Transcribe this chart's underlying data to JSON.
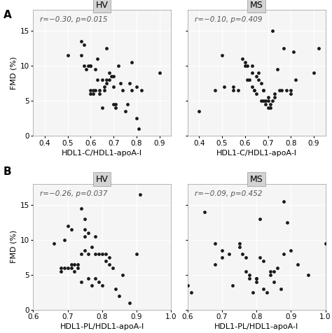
{
  "panel_A_HV": {
    "label": "HV",
    "annotation": "r=−0.30, p=0.015",
    "x": [
      0.5,
      0.56,
      0.57,
      0.56,
      0.57,
      0.58,
      0.59,
      0.6,
      0.6,
      0.6,
      0.6,
      0.61,
      0.61,
      0.62,
      0.62,
      0.63,
      0.63,
      0.64,
      0.64,
      0.65,
      0.65,
      0.66,
      0.66,
      0.67,
      0.67,
      0.67,
      0.68,
      0.68,
      0.69,
      0.7,
      0.7,
      0.7,
      0.71,
      0.71,
      0.72,
      0.73,
      0.74,
      0.75,
      0.76,
      0.77,
      0.78,
      0.78,
      0.8,
      0.8,
      0.81,
      0.82,
      0.9
    ],
    "y": [
      11.5,
      13.5,
      13.0,
      11.5,
      10.0,
      9.5,
      10.0,
      10.0,
      10.0,
      6.0,
      6.5,
      6.0,
      6.5,
      9.5,
      6.5,
      11.0,
      8.0,
      6.0,
      6.5,
      8.0,
      4.0,
      6.5,
      7.0,
      12.5,
      8.0,
      7.5,
      9.0,
      8.0,
      8.5,
      8.5,
      7.0,
      4.5,
      4.5,
      4.0,
      10.0,
      7.5,
      6.5,
      3.5,
      4.5,
      7.5,
      10.5,
      6.5,
      2.5,
      7.0,
      1.0,
      6.5,
      9.0
    ],
    "xlim": [
      0.35,
      0.95
    ],
    "ylim": [
      0,
      18
    ],
    "xticks": [
      0.4,
      0.5,
      0.6,
      0.7,
      0.8,
      0.9
    ],
    "yticks": [
      0,
      5,
      10,
      15
    ]
  },
  "panel_A_MS": {
    "label": "MS",
    "annotation": "r=−0.10, p=0.409",
    "x": [
      0.4,
      0.47,
      0.5,
      0.51,
      0.55,
      0.55,
      0.57,
      0.59,
      0.6,
      0.6,
      0.61,
      0.61,
      0.62,
      0.63,
      0.63,
      0.63,
      0.64,
      0.64,
      0.65,
      0.65,
      0.66,
      0.66,
      0.67,
      0.67,
      0.68,
      0.68,
      0.68,
      0.69,
      0.69,
      0.7,
      0.7,
      0.7,
      0.71,
      0.71,
      0.72,
      0.72,
      0.73,
      0.73,
      0.74,
      0.75,
      0.76,
      0.77,
      0.78,
      0.8,
      0.8,
      0.81,
      0.82,
      0.9,
      0.92
    ],
    "y": [
      3.5,
      6.5,
      11.5,
      7.0,
      6.5,
      7.0,
      6.5,
      11.0,
      10.5,
      10.0,
      10.0,
      8.0,
      8.0,
      10.0,
      9.0,
      7.0,
      6.5,
      6.5,
      8.5,
      6.0,
      9.0,
      8.0,
      7.5,
      5.0,
      5.0,
      6.5,
      6.5,
      5.0,
      4.5,
      5.5,
      5.0,
      4.0,
      4.5,
      4.0,
      15.0,
      5.0,
      5.5,
      6.0,
      9.5,
      6.5,
      6.5,
      12.5,
      6.5,
      6.5,
      6.0,
      12.0,
      8.0,
      9.0,
      12.5
    ],
    "xlim": [
      0.35,
      0.95
    ],
    "ylim": [
      0,
      18
    ],
    "xticks": [
      0.4,
      0.5,
      0.6,
      0.7,
      0.8,
      0.9
    ],
    "yticks": [
      0,
      5,
      10,
      15
    ]
  },
  "panel_B_HV": {
    "label": "HV",
    "annotation": "r=−0.26, p=0.037",
    "x": [
      0.66,
      0.68,
      0.68,
      0.69,
      0.69,
      0.7,
      0.7,
      0.71,
      0.71,
      0.71,
      0.72,
      0.72,
      0.73,
      0.73,
      0.74,
      0.74,
      0.74,
      0.75,
      0.75,
      0.75,
      0.75,
      0.76,
      0.76,
      0.76,
      0.77,
      0.77,
      0.78,
      0.78,
      0.78,
      0.79,
      0.79,
      0.8,
      0.8,
      0.81,
      0.81,
      0.82,
      0.82,
      0.83,
      0.84,
      0.85,
      0.86,
      0.88,
      0.9,
      0.91
    ],
    "y": [
      9.5,
      5.5,
      6.0,
      10.0,
      6.0,
      12.0,
      6.0,
      11.5,
      6.5,
      6.0,
      6.5,
      5.5,
      6.5,
      6.0,
      14.5,
      8.0,
      4.0,
      13.0,
      11.5,
      10.5,
      8.5,
      11.0,
      8.0,
      4.5,
      9.0,
      3.5,
      10.5,
      8.0,
      4.5,
      8.0,
      4.0,
      8.0,
      3.5,
      8.0,
      7.0,
      6.5,
      7.5,
      6.0,
      3.0,
      2.0,
      5.0,
      1.0,
      8.0,
      16.5
    ],
    "xlim": [
      0.6,
      1.0
    ],
    "ylim": [
      0,
      18
    ],
    "xticks": [
      0.6,
      0.7,
      0.8,
      0.9,
      1.0
    ],
    "yticks": [
      0,
      5,
      10,
      15
    ]
  },
  "panel_B_MS": {
    "label": "MS",
    "annotation": "r=−0.09, p=0.452",
    "x": [
      0.6,
      0.61,
      0.65,
      0.68,
      0.68,
      0.7,
      0.7,
      0.72,
      0.73,
      0.75,
      0.75,
      0.76,
      0.77,
      0.77,
      0.78,
      0.78,
      0.79,
      0.8,
      0.8,
      0.8,
      0.81,
      0.81,
      0.82,
      0.82,
      0.83,
      0.84,
      0.84,
      0.85,
      0.85,
      0.86,
      0.87,
      0.88,
      0.88,
      0.89,
      0.9,
      0.92,
      0.95,
      1.0
    ],
    "y": [
      3.5,
      2.5,
      14.0,
      9.5,
      6.5,
      8.5,
      7.5,
      8.0,
      3.5,
      9.5,
      9.0,
      8.0,
      7.5,
      5.5,
      5.0,
      4.5,
      2.5,
      4.5,
      4.5,
      4.0,
      13.0,
      7.5,
      7.0,
      3.0,
      2.5,
      5.5,
      5.0,
      5.5,
      4.0,
      6.0,
      3.0,
      15.5,
      8.0,
      12.5,
      8.5,
      6.5,
      5.0,
      9.5
    ],
    "xlim": [
      0.6,
      1.0
    ],
    "ylim": [
      0,
      18
    ],
    "xticks": [
      0.6,
      0.7,
      0.8,
      0.9,
      1.0
    ],
    "yticks": [
      0,
      5,
      10,
      15
    ]
  },
  "xlabel_A": "HDL1-C/HDL1-apoA-I",
  "xlabel_B": "HDL1-PL/HDL1-apoA-I",
  "ylabel": "FMD (%)",
  "panel_label_A": "A",
  "panel_label_B": "B",
  "header_bg": "#d3d3d3",
  "plot_bg": "#f5f5f5",
  "grid_color": "#ffffff",
  "dot_color": "#1a1a1a",
  "dot_size": 12,
  "title_fontsize": 9,
  "label_fontsize": 8,
  "tick_fontsize": 7.5,
  "annot_fontsize": 7.5
}
